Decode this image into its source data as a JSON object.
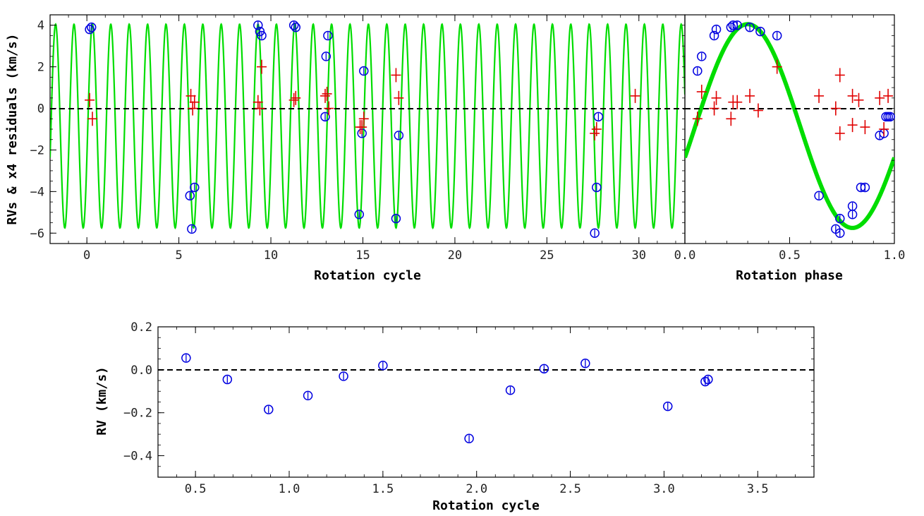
{
  "chart_data": [
    {
      "type": "scatter",
      "xlabel": "Rotation cycle",
      "ylabel": "RVs & x4 residuals (km/s)",
      "xlim": [
        -2,
        32.5
      ],
      "ylim": [
        -6.5,
        4.5
      ],
      "xticks": [
        "0",
        "5",
        "10",
        "15",
        "20",
        "25",
        "30"
      ],
      "yticks": [
        "4",
        "2",
        "0",
        "-2",
        "-4",
        "-6"
      ],
      "model": {
        "period": 1.0,
        "offset": -0.85,
        "amplitude": 4.9,
        "phase_shift": 0.05
      },
      "series": [
        {
          "marker": "circle",
          "color": "#0000e0",
          "x": [
            0.15,
            0.25,
            5.6,
            5.7,
            5.85,
            9.3,
            9.4,
            9.5,
            11.25,
            11.35,
            12.95,
            13.0,
            13.1,
            14.8,
            14.95,
            15.05,
            16.8,
            16.95,
            27.6,
            27.7,
            27.8
          ],
          "y": [
            3.8,
            3.9,
            -4.2,
            -5.8,
            -3.8,
            4.0,
            3.7,
            3.5,
            4.0,
            3.9,
            -0.4,
            2.5,
            3.5,
            -5.1,
            -1.2,
            1.8,
            -5.3,
            -1.3,
            -6.0,
            -3.8,
            -0.4
          ]
        },
        {
          "marker": "plus",
          "color": "#e00000",
          "x": [
            0.15,
            0.3,
            5.65,
            5.75,
            5.85,
            9.3,
            9.4,
            9.5,
            11.25,
            11.35,
            12.95,
            13.05,
            13.15,
            14.85,
            14.95,
            15.05,
            16.8,
            16.95,
            27.6,
            27.7,
            29.8
          ],
          "y": [
            0.4,
            -0.5,
            0.6,
            0.0,
            0.3,
            0.3,
            0.0,
            2.0,
            0.4,
            0.5,
            0.6,
            0.7,
            0.0,
            -0.9,
            -0.9,
            -0.5,
            1.6,
            0.5,
            -1.2,
            -1.0,
            0.6
          ]
        }
      ]
    },
    {
      "type": "scatter",
      "xlabel": "Rotation phase",
      "xlim": [
        0,
        1
      ],
      "ylim": [
        -6.5,
        4.5
      ],
      "xticks": [
        "0.0",
        "0.5",
        "1.0"
      ],
      "model": {
        "offset": -0.85,
        "amplitude": 4.9,
        "phase_shift": 0.05
      },
      "series": [
        {
          "marker": "circle",
          "color": "#0000e0",
          "x": [
            0.06,
            0.08,
            0.14,
            0.15,
            0.22,
            0.23,
            0.25,
            0.31,
            0.36,
            0.44,
            0.64,
            0.72,
            0.74,
            0.74,
            0.8,
            0.8,
            0.84,
            0.86,
            0.93,
            0.95,
            0.96,
            0.97,
            0.98
          ],
          "y": [
            1.8,
            2.5,
            3.5,
            3.8,
            3.9,
            4.0,
            4.0,
            3.9,
            3.7,
            3.5,
            -4.2,
            -5.8,
            -6.0,
            -5.3,
            -5.1,
            -4.7,
            -3.8,
            -3.8,
            -1.3,
            -1.2,
            -0.4,
            -0.4,
            -0.4
          ]
        },
        {
          "marker": "plus",
          "color": "#e00000",
          "x": [
            0.06,
            0.08,
            0.14,
            0.15,
            0.22,
            0.23,
            0.25,
            0.31,
            0.35,
            0.44,
            0.64,
            0.72,
            0.74,
            0.74,
            0.8,
            0.8,
            0.83,
            0.86,
            0.93,
            0.95,
            0.97
          ],
          "y": [
            -0.5,
            0.8,
            0.0,
            0.5,
            -0.5,
            0.3,
            0.3,
            0.6,
            -0.1,
            2.0,
            0.6,
            0.0,
            1.6,
            -1.2,
            -0.8,
            0.6,
            0.4,
            -0.9,
            0.5,
            -1.0,
            0.6
          ]
        }
      ]
    },
    {
      "type": "scatter",
      "xlabel": "Rotation cycle",
      "ylabel": "RV (km/s)",
      "xlim": [
        0.3,
        3.8
      ],
      "ylim": [
        -0.5,
        0.2
      ],
      "xticks": [
        "0.5",
        "1.0",
        "1.5",
        "2.0",
        "2.5",
        "3.0",
        "3.5"
      ],
      "yticks": [
        "0.2",
        "0.0",
        "-0.2",
        "-0.4"
      ],
      "series": [
        {
          "marker": "circle",
          "color": "#0000e0",
          "x": [
            0.45,
            0.67,
            0.89,
            1.1,
            1.29,
            1.5,
            1.96,
            2.18,
            2.36,
            2.58,
            3.02,
            3.22,
            3.235
          ],
          "y": [
            0.055,
            -0.045,
            -0.185,
            -0.12,
            -0.03,
            0.02,
            -0.32,
            -0.095,
            0.005,
            0.03,
            -0.17,
            -0.055,
            -0.045
          ]
        }
      ]
    }
  ]
}
